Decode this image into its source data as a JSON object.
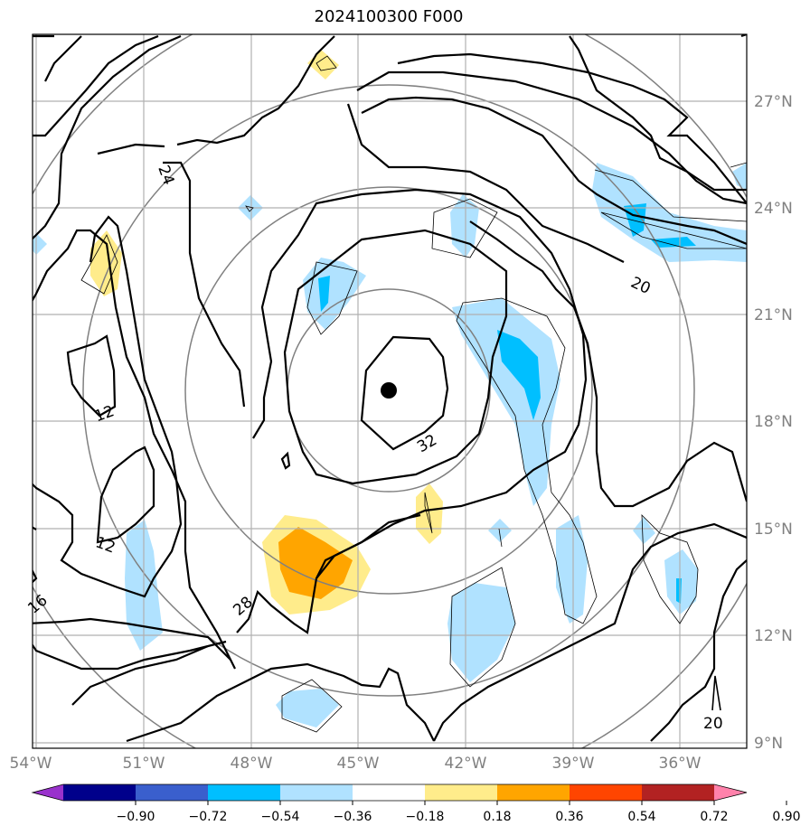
{
  "title": "2024100300 F000",
  "map": {
    "lat_labels": [
      "27°N",
      "24°N",
      "21°N",
      "18°N",
      "15°N",
      "12°N",
      "9°N"
    ],
    "lon_labels": [
      "54°W",
      "51°W",
      "48°W",
      "45°W",
      "42°W",
      "39°W",
      "36°W"
    ],
    "contour_labels": [
      "24",
      "20",
      "12",
      "32",
      "12",
      "28",
      "16"
    ],
    "reference_label": "20",
    "center_marker": {
      "lat": 18.9,
      "lon": -44.1
    }
  },
  "colorbar": {
    "ticks": [
      "−0.90",
      "−0.72",
      "−0.54",
      "−0.36",
      "−0.18",
      "0.18",
      "0.36",
      "0.54",
      "0.72",
      "0.90"
    ],
    "colors": [
      "#9932cc",
      "#00008b",
      "#3a5fcd",
      "#00bfff",
      "#b0e2ff",
      "#ffffff",
      "#ffec8b",
      "#ffa500",
      "#ff4500",
      "#b22222",
      "#ff82ab"
    ]
  }
}
